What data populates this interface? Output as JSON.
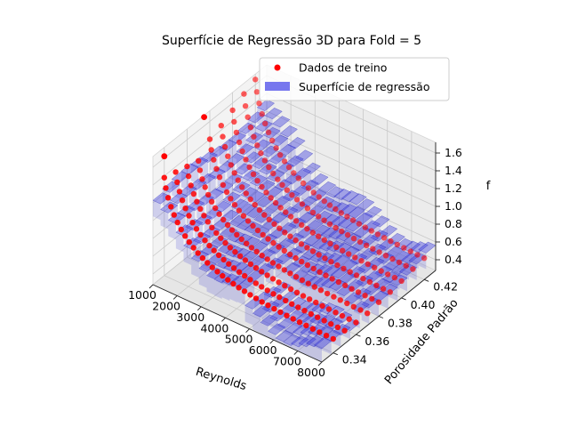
{
  "chart_data": {
    "type": "scatter3d",
    "title": "Superfície de Regressão 3D para Fold = 5",
    "xlabel": "Reynolds",
    "ylabel": "Porosidade Padrão",
    "zlabel": "f",
    "x_ticks": [
      "1000",
      "2000",
      "3000",
      "4000",
      "5000",
      "6000",
      "7000",
      "8000"
    ],
    "y_ticks": [
      "0.34",
      "0.36",
      "0.38",
      "0.40",
      "0.42"
    ],
    "z_ticks": [
      "0.4",
      "0.6",
      "0.8",
      "1.0",
      "1.2",
      "1.4",
      "1.6"
    ],
    "xlim": [
      1000,
      8000
    ],
    "ylim": [
      0.33,
      0.43
    ],
    "zlim": [
      0.28,
      1.72
    ],
    "grid": true,
    "legend_position": "top-right",
    "series": [
      {
        "name": "Dados de treino",
        "kind": "scatter",
        "color": "#ff0000"
      },
      {
        "name": "Superfície de regressão",
        "kind": "surface",
        "color": "#0000cc"
      }
    ],
    "training_curves": [
      {
        "porosity": 0.34,
        "reynolds": [
          1000,
          8000
        ],
        "f_start": 1.38,
        "f_end": 0.42
      },
      {
        "porosity": 0.35,
        "reynolds": [
          1000,
          8000
        ],
        "f_start": 1.34,
        "f_end": 0.41
      },
      {
        "porosity": 0.36,
        "reynolds": [
          1000,
          8000
        ],
        "f_start": 1.3,
        "f_end": 0.4
      },
      {
        "porosity": 0.37,
        "reynolds": [
          1000,
          8000
        ],
        "f_start": 1.26,
        "f_end": 0.4
      },
      {
        "porosity": 0.38,
        "reynolds": [
          1000,
          8000
        ],
        "f_start": 1.4,
        "f_end": 0.42
      },
      {
        "porosity": 0.39,
        "reynolds": [
          1000,
          8000
        ],
        "f_start": 1.45,
        "f_end": 0.43
      },
      {
        "porosity": 0.4,
        "reynolds": [
          1000,
          8000
        ],
        "f_start": 1.52,
        "f_end": 0.45
      },
      {
        "porosity": 0.41,
        "reynolds": [
          1000,
          8000
        ],
        "f_start": 1.6,
        "f_end": 0.48
      },
      {
        "porosity": 0.42,
        "reynolds": [
          1000,
          8000
        ],
        "f_start": 1.66,
        "f_end": 0.5
      }
    ],
    "outliers": [
      {
        "reynolds": 1000,
        "porosity": 0.34,
        "f": 1.62
      },
      {
        "reynolds": 1000,
        "porosity": 0.375,
        "f": 1.7
      }
    ]
  }
}
